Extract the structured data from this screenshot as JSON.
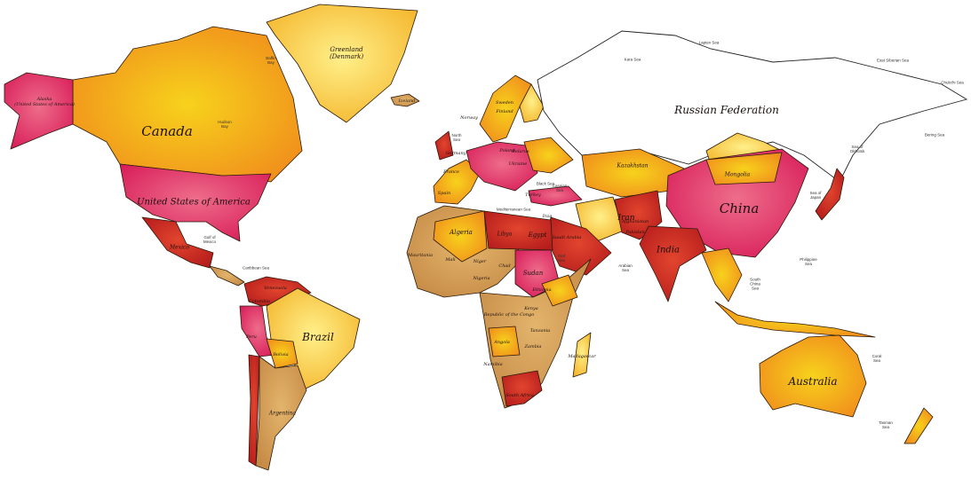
{
  "map": {
    "type": "political world map",
    "colors": {
      "pink": "#e0446e",
      "orange": "#f28a1e",
      "yellow": "#f7d21c",
      "light": "#fde68a",
      "brown": "#c07a3a",
      "red": "#c0201e",
      "tan": "#d6a15b",
      "russia": "#ffffff"
    },
    "countries_major": [
      "Canada",
      "United States of America",
      "Russian Federation",
      "China",
      "Brazil",
      "Australia",
      "India",
      "Greenland\n(Denmark)",
      "Kazakhstan",
      "Mongolia",
      "Argentina",
      "Algeria",
      "Libya",
      "Sudan",
      "Iran",
      "Egypt",
      "Mexico"
    ],
    "countries_minor": [
      "Alaska\n(United States of America)",
      "Sweden",
      "Finland",
      "Norway",
      "Poland",
      "Belarus",
      "Ukraine",
      "Germany",
      "France",
      "Spain",
      "Turkey",
      "Iraq",
      "Saudi Arabia",
      "Afghanistan",
      "Pakistan",
      "Mali",
      "Niger",
      "Chad",
      "Nigeria",
      "Ethiopia",
      "Kenya",
      "Tanzania",
      "Angola",
      "Zambia",
      "Namibia",
      "South Africa",
      "Republic of the Congo",
      "Mauritania",
      "Bolivia",
      "Colombia",
      "Venezuela",
      "Peru",
      "Iceland",
      "Madagascar"
    ],
    "seas": [
      "Baffin\nBay",
      "Hudson\nBay",
      "Gulf of\nMexico",
      "Caribbean Sea",
      "Mediterranean Sea",
      "Black Sea",
      "North\nSea",
      "Arabian\nSea",
      "Laptev Sea",
      "East Siberian Sea",
      "Bering Sea",
      "Sea of\nOkhotsk",
      "Sea of\nJapan",
      "Philippine\nSea",
      "South\nChina\nSea",
      "Coral\nSea",
      "Tasman\nSea",
      "Red\nSea",
      "Chukchi Sea",
      "Kara Sea",
      "Caspian\nSea"
    ]
  }
}
